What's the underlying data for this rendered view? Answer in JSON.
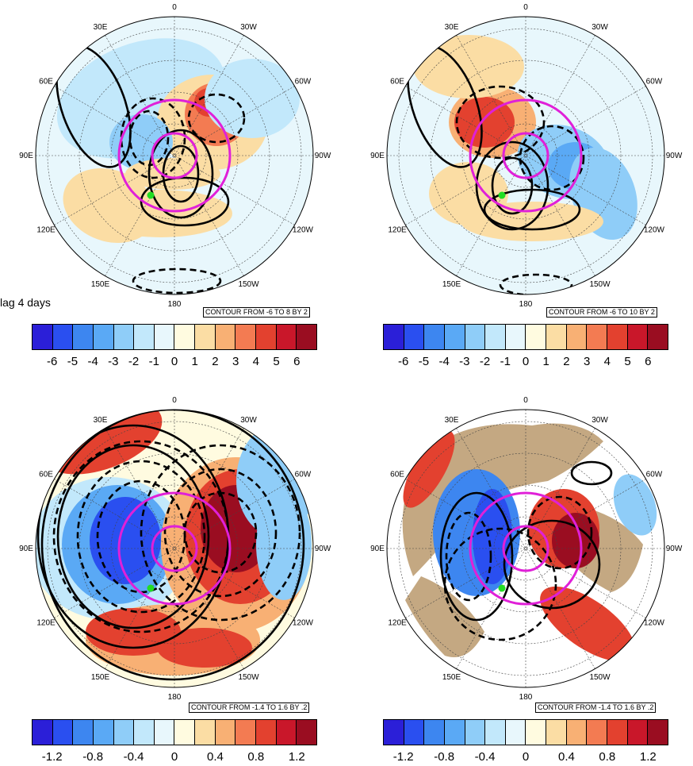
{
  "figure": {
    "lag_label": "lag 4 days",
    "panels": [
      {
        "id": "top-left",
        "contour_note": "CONTOUR FROM -6 TO 8 BY 2",
        "longitude_labels": [
          "0",
          "30W",
          "60W",
          "90W",
          "120W",
          "150W",
          "180",
          "150E",
          "120E",
          "90E",
          "60E",
          "30E"
        ],
        "colorbar_ticks": [
          "-6",
          "-5",
          "-4",
          "-3",
          "-2",
          "-1",
          "0",
          "1",
          "2",
          "3",
          "4",
          "5",
          "6"
        ],
        "land_fill": false
      },
      {
        "id": "top-right",
        "contour_note": "CONTOUR FROM -6 TO 10 BY 2",
        "longitude_labels": [
          "0",
          "30W",
          "60W",
          "90W",
          "120W",
          "150W",
          "180",
          "150E",
          "120E",
          "90E",
          "60E",
          "30E"
        ],
        "colorbar_ticks": [
          "-6",
          "-5",
          "-4",
          "-3",
          "-2",
          "-1",
          "0",
          "1",
          "2",
          "3",
          "4",
          "5",
          "6"
        ],
        "land_fill": false
      },
      {
        "id": "bottom-left",
        "contour_note": "CONTOUR FROM -1.4 TO 1.6 BY .2",
        "longitude_labels": [
          "0",
          "30W",
          "60W",
          "90W",
          "120W",
          "150W",
          "180",
          "150E",
          "120E",
          "90E",
          "60E",
          "30E"
        ],
        "colorbar_ticks": [
          "-1.2",
          "-0.8",
          "-0.4",
          "0",
          "0.4",
          "0.8",
          "1.2"
        ],
        "land_fill": false
      },
      {
        "id": "bottom-right",
        "contour_note": "CONTOUR FROM -1.4 TO 1.6 BY .2",
        "longitude_labels": [
          "0",
          "30W",
          "60W",
          "90W",
          "120W",
          "150W",
          "180",
          "150E",
          "120E",
          "90E",
          "60E",
          "30E"
        ],
        "colorbar_ticks": [
          "-1.2",
          "-0.8",
          "-0.4",
          "0",
          "0.4",
          "0.8",
          "1.2"
        ],
        "land_fill": true
      }
    ],
    "colors": {
      "palette_13": [
        "#2b1fd8",
        "#2a4ff0",
        "#3d86f0",
        "#5aa9f5",
        "#8fcdf8",
        "#c2e8fb",
        "#e8f7fc",
        "#fffbe0",
        "#fbdda4",
        "#f8b074",
        "#f37b52",
        "#e3412f",
        "#c9172a",
        "#9a0d21"
      ],
      "magenta_circle": "#e020d8",
      "marker": "#22dd22",
      "land_tan": "#c4a882"
    }
  }
}
